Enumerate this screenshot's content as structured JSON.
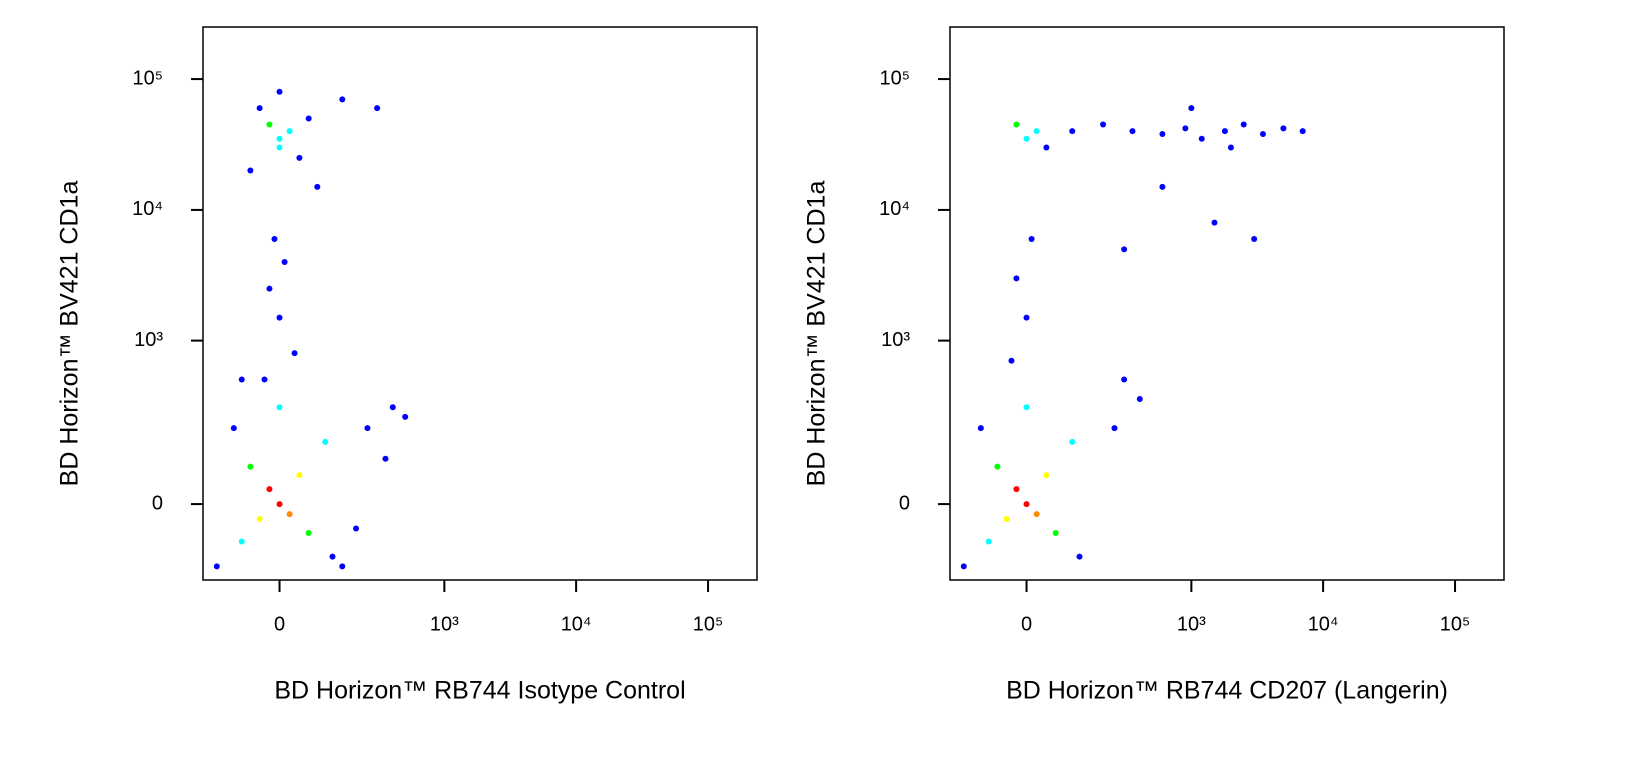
{
  "chart_data": [
    {
      "type": "scatter",
      "xscale": "arcsinh",
      "yscale": "arcsinh",
      "xlabel": "BD Horizon™ RB744 Isotype Control",
      "ylabel": "BD Horizon™ BV421 CD1a",
      "xlim": [
        -200,
        235000
      ],
      "ylim": [
        -200,
        250000
      ],
      "xticks": [
        0,
        {
          "value": 1000,
          "label": "10³"
        },
        {
          "value": 10000,
          "label": "10⁴"
        },
        {
          "value": 100000,
          "label": "10⁵"
        }
      ],
      "yticks": [
        0,
        {
          "value": 1000,
          "label": "10³"
        },
        {
          "value": 10000,
          "label": "10⁴"
        },
        {
          "value": 100000,
          "label": "10⁵"
        }
      ],
      "x": [
        0,
        -20,
        20,
        -40,
        40,
        -60,
        60,
        -80,
        100,
        -100,
        120,
        0,
        -30,
        30,
        0,
        -20,
        10,
        -10,
        0,
        20,
        -20,
        0,
        40,
        -40,
        60,
        -60,
        0,
        150,
        300,
        250,
        400,
        350,
        200,
        500,
        -150,
        150,
        80,
        -80
      ],
      "y": [
        0,
        30,
        -20,
        -30,
        60,
        80,
        -60,
        -80,
        150,
        200,
        -120,
        300,
        500,
        800,
        1500,
        2500,
        4000,
        6000,
        35000,
        40000,
        45000,
        30000,
        25000,
        60000,
        50000,
        20000,
        80000,
        70000,
        60000,
        200,
        300,
        100,
        -50,
        250,
        -150,
        -150,
        15000,
        500
      ],
      "colors": [
        "#ff0000",
        "#ff0000",
        "#ff8c00",
        "#ffff00",
        "#ffff00",
        "#00ff00",
        "#00ff00",
        "#00ffff",
        "#00ffff",
        "#0000ff",
        "#0000ff",
        "#00ffff",
        "#0000ff",
        "#0000ff",
        "#0000ff",
        "#0000ff",
        "#0000ff",
        "#0000ff",
        "#00ffff",
        "#00ffff",
        "#00ff00",
        "#00ffff",
        "#0000ff",
        "#0000ff",
        "#0000ff",
        "#0000ff",
        "#0000ff",
        "#0000ff",
        "#0000ff",
        "#0000ff",
        "#0000ff",
        "#0000ff",
        "#0000ff",
        "#0000ff",
        "#0000ff",
        "#0000ff",
        "#0000ff",
        "#0000ff"
      ]
    },
    {
      "type": "scatter",
      "xscale": "arcsinh",
      "yscale": "arcsinh",
      "xlabel": "BD Horizon™ RB744 CD207 (Langerin)",
      "ylabel": "BD Horizon™ BV421 CD1a",
      "xlim": [
        -200,
        235000
      ],
      "ylim": [
        -200,
        250000
      ],
      "xticks": [
        0,
        {
          "value": 1000,
          "label": "10³"
        },
        {
          "value": 10000,
          "label": "10⁴"
        },
        {
          "value": 100000,
          "label": "10⁵"
        }
      ],
      "yticks": [
        0,
        {
          "value": 1000,
          "label": "10³"
        },
        {
          "value": 10000,
          "label": "10⁴"
        },
        {
          "value": 100000,
          "label": "10⁵"
        }
      ],
      "x": [
        0,
        -20,
        20,
        -40,
        40,
        -60,
        60,
        -80,
        100,
        -100,
        120,
        0,
        -30,
        0,
        -20,
        10,
        0,
        20,
        -20,
        40,
        100,
        200,
        350,
        600,
        900,
        1200,
        1800,
        2500,
        3500,
        5000,
        7000,
        1000,
        2000,
        600,
        1500,
        3000,
        300,
        250,
        400,
        300,
        -150
      ],
      "y": [
        0,
        30,
        -20,
        -30,
        60,
        80,
        -60,
        -80,
        150,
        200,
        -120,
        300,
        700,
        1500,
        3000,
        6000,
        35000,
        40000,
        45000,
        30000,
        40000,
        45000,
        40000,
        38000,
        42000,
        35000,
        40000,
        45000,
        38000,
        42000,
        40000,
        60000,
        30000,
        15000,
        8000,
        6000,
        5000,
        200,
        350,
        500,
        -150
      ],
      "colors": [
        "#ff0000",
        "#ff0000",
        "#ff8c00",
        "#ffff00",
        "#ffff00",
        "#00ff00",
        "#00ff00",
        "#00ffff",
        "#00ffff",
        "#0000ff",
        "#0000ff",
        "#00ffff",
        "#0000ff",
        "#0000ff",
        "#0000ff",
        "#0000ff",
        "#00ffff",
        "#00ffff",
        "#00ff00",
        "#0000ff",
        "#0000ff",
        "#0000ff",
        "#0000ff",
        "#0000ff",
        "#0000ff",
        "#0000ff",
        "#0000ff",
        "#0000ff",
        "#0000ff",
        "#0000ff",
        "#0000ff",
        "#0000ff",
        "#0000ff",
        "#0000ff",
        "#0000ff",
        "#0000ff",
        "#0000ff",
        "#0000ff",
        "#0000ff",
        "#0000ff",
        "#0000ff"
      ]
    }
  ]
}
